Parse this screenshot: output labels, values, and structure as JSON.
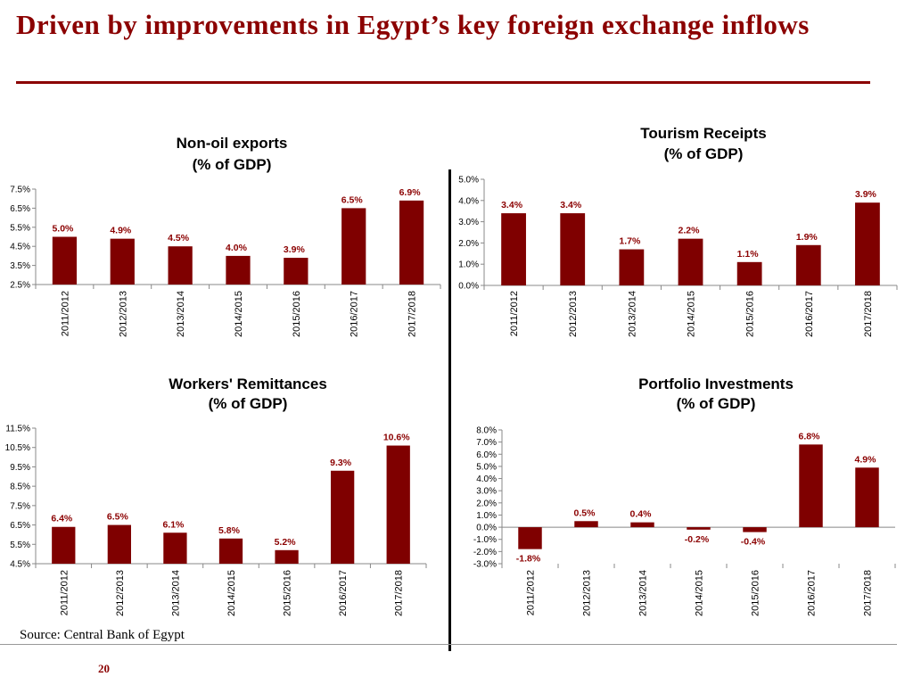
{
  "slide": {
    "title": "Driven by improvements in Egypt’s key foreign exchange inflows",
    "source": "Source: Central Bank of Egypt",
    "page_number": "20",
    "colors": {
      "bar": "#7f0000",
      "title": "#8b0000"
    }
  },
  "chart_data": [
    {
      "type": "bar",
      "title_lines": [
        "Non-oil exports",
        "(% of GDP)"
      ],
      "categories": [
        "2011/2012",
        "2012/2013",
        "2013/2014",
        "2014/2015",
        "2015/2016",
        "2016/2017",
        "2017/2018"
      ],
      "values": [
        5.0,
        4.9,
        4.5,
        4.0,
        3.9,
        6.5,
        6.9
      ],
      "value_labels": [
        "5.0%",
        "4.9%",
        "4.5%",
        "4.0%",
        "3.9%",
        "6.5%",
        "6.9%"
      ],
      "yticks": [
        "2.5%",
        "3.5%",
        "4.5%",
        "5.5%",
        "6.5%",
        "7.5%"
      ],
      "ylim": [
        2.5,
        7.5
      ],
      "grid": false
    },
    {
      "type": "bar",
      "title_lines": [
        "Tourism Receipts",
        "(% of GDP)"
      ],
      "categories": [
        "2011/2012",
        "2012/2013",
        "2013/2014",
        "2014/2015",
        "2015/2016",
        "2016/2017",
        "2017/2018"
      ],
      "values": [
        3.4,
        3.4,
        1.7,
        2.2,
        1.1,
        1.9,
        3.9
      ],
      "value_labels": [
        "3.4%",
        "3.4%",
        "1.7%",
        "2.2%",
        "1.1%",
        "1.9%",
        "3.9%"
      ],
      "yticks": [
        "0.0%",
        "1.0%",
        "2.0%",
        "3.0%",
        "4.0%",
        "5.0%"
      ],
      "ylim": [
        0,
        5
      ],
      "grid": false
    },
    {
      "type": "bar",
      "title_lines": [
        "Workers' Remittances",
        "(% of GDP)"
      ],
      "categories": [
        "2011/2012",
        "2012/2013",
        "2013/2014",
        "2014/2015",
        "2015/2016",
        "2016/2017",
        "2017/2018"
      ],
      "values": [
        6.4,
        6.5,
        6.1,
        5.8,
        5.2,
        9.3,
        10.6
      ],
      "value_labels": [
        "6.4%",
        "6.5%",
        "6.1%",
        "5.8%",
        "5.2%",
        "9.3%",
        "10.6%"
      ],
      "yticks": [
        "4.5%",
        "5.5%",
        "6.5%",
        "7.5%",
        "8.5%",
        "9.5%",
        "10.5%",
        "11.5%"
      ],
      "ylim": [
        4.5,
        11.5
      ],
      "grid": false
    },
    {
      "type": "bar",
      "title_lines": [
        "Portfolio Investments",
        "(% of GDP)"
      ],
      "categories": [
        "2011/2012",
        "2012/2013",
        "2013/2014",
        "2014/2015",
        "2015/2016",
        "2016/2017",
        "2017/2018"
      ],
      "values": [
        -1.8,
        0.5,
        0.4,
        -0.2,
        -0.4,
        6.8,
        4.9
      ],
      "value_labels": [
        "-1.8%",
        "0.5%",
        "0.4%",
        "-0.2%",
        "-0.4%",
        "6.8%",
        "4.9%"
      ],
      "yticks": [
        "-3.0%",
        "-2.0%",
        "-1.0%",
        "0.0%",
        "1.0%",
        "2.0%",
        "3.0%",
        "4.0%",
        "5.0%",
        "6.0%",
        "7.0%",
        "8.0%"
      ],
      "ylim": [
        -3,
        8
      ],
      "grid": false
    }
  ]
}
